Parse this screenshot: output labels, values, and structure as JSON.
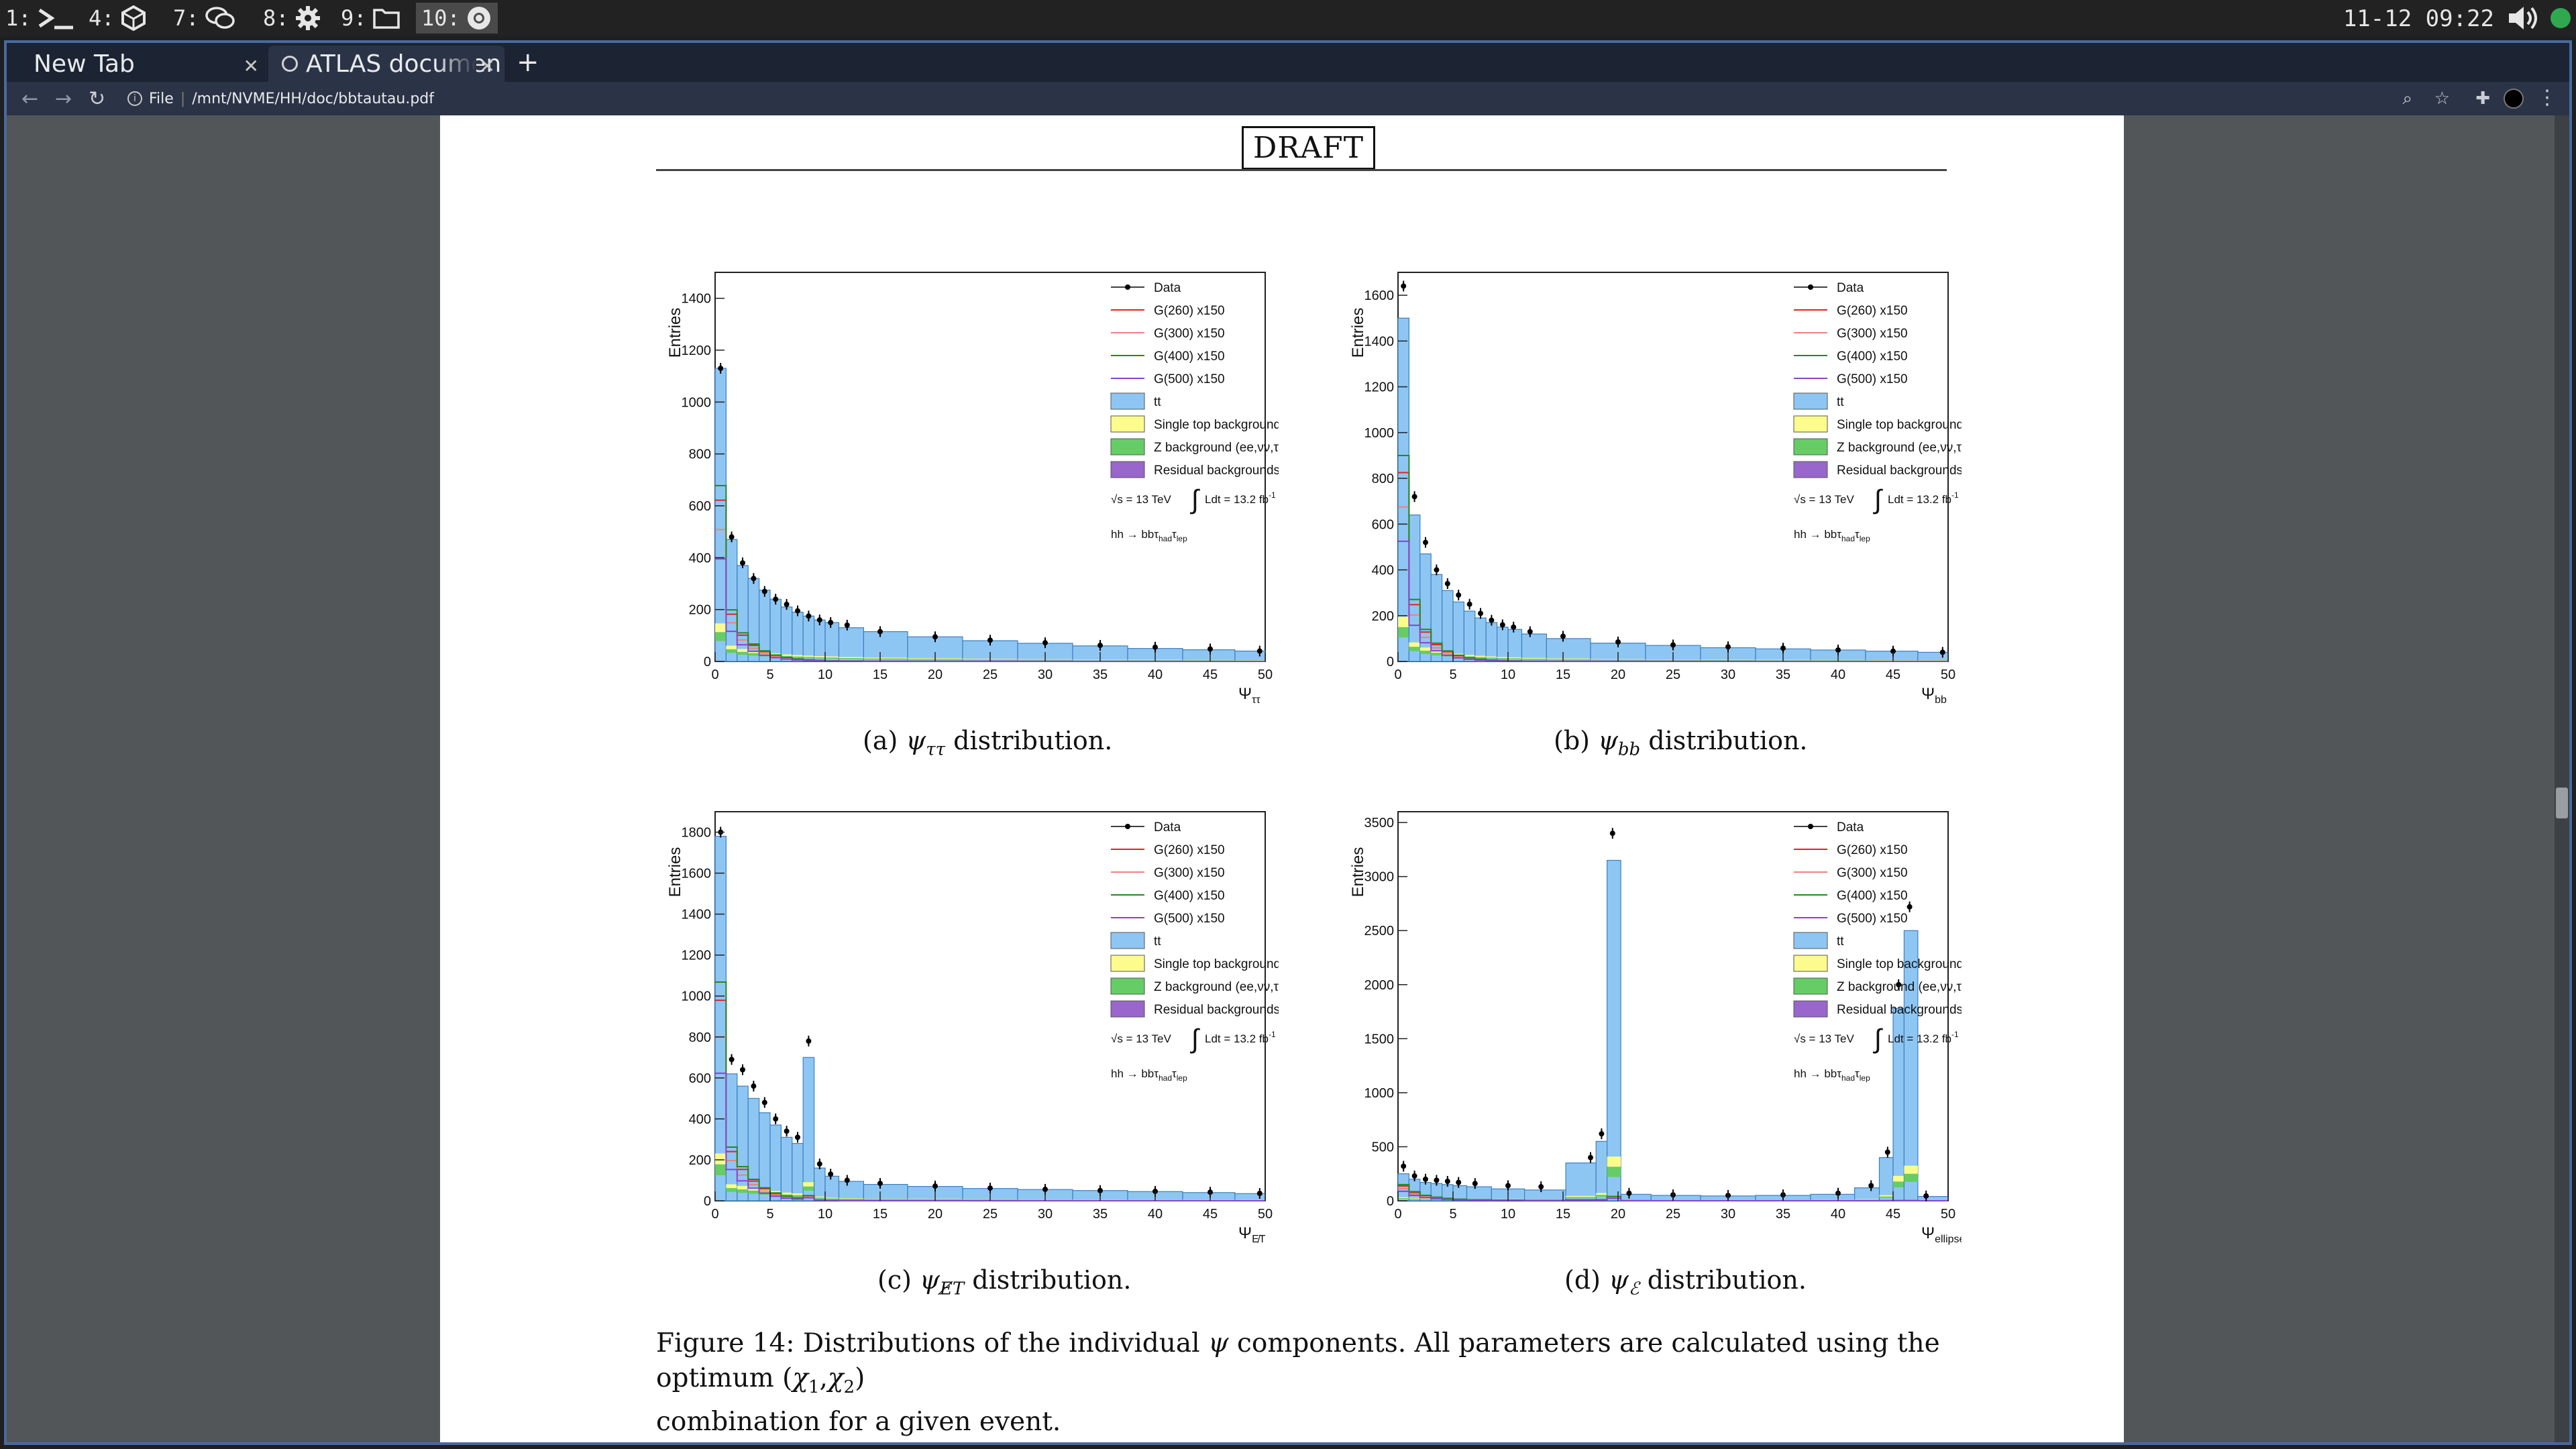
{
  "topbar": {
    "workspaces": [
      {
        "label": "1:",
        "icon": "terminal-icon"
      },
      {
        "label": "4:",
        "icon": "cube-icon"
      },
      {
        "label": "7:",
        "icon": "chat-icon"
      },
      {
        "label": "8:",
        "icon": "gear-icon"
      },
      {
        "label": "9:",
        "icon": "folder-icon"
      },
      {
        "label": "10:",
        "icon": "chrome-icon"
      }
    ],
    "clock": "11-12 09:22"
  },
  "browser": {
    "tabs": [
      {
        "label": "New Tab"
      },
      {
        "label": "ATLAS documen"
      }
    ],
    "omnibox": {
      "scheme": "File",
      "url": "/mnt/NVME/HH/doc/bbtautau.pdf"
    }
  },
  "document": {
    "draft_label": "DRAFT",
    "figure_caption": {
      "prefix": "Figure 14: Distributions of the individual",
      "psi": "ψ",
      "middle": "components. All parameters are calculated using the optimum (",
      "chi": "χ",
      "s1": "1",
      "comma": ",",
      "s2": "2",
      "close": ")",
      "line2": "combination for a given event."
    },
    "panels": [
      {
        "caption_letter": "(a)",
        "sym": "ψ",
        "sub": "ττ",
        "suffix": "distribution."
      },
      {
        "caption_letter": "(b)",
        "sym": "ψ",
        "sub": "bb",
        "suffix": "distribution."
      },
      {
        "caption_letter": "(c)",
        "sym": "ψ",
        "sub": "E̸T",
        "suffix": "distribution."
      },
      {
        "caption_letter": "(d)",
        "sym": "ψ",
        "sub": "ℰ",
        "suffix": "distribution."
      }
    ]
  },
  "colors": {
    "ttbar": "#8ec6f3",
    "single_top": "#fcfc8c",
    "z_bkg": "#66cc66",
    "residual": "#9966cc",
    "g260": "#e62222",
    "g300": "#f08080",
    "g400": "#228822",
    "g500": "#8844cc"
  },
  "chart_data": [
    {
      "type": "bar",
      "ylabel": "Entries",
      "xlabel_main": "Ψ",
      "xlabel_sub": "ττ",
      "xlim": [
        0,
        50
      ],
      "ylim": [
        0,
        1500
      ],
      "yticks": [
        0,
        200,
        400,
        600,
        800,
        1000,
        1200,
        1400
      ],
      "xticks": [
        0,
        5,
        10,
        15,
        20,
        25,
        30,
        35,
        40,
        45,
        50
      ],
      "legend": [
        "Data",
        "G(260) x150",
        "G(300) x150",
        "G(400) x150",
        "G(500) x150",
        "tt",
        "Single top background",
        "Z background (ee,νν,ττ)",
        "Residual backgrounds"
      ],
      "lumi": {
        "sqrt": "√s = 13 TeV",
        "integral": "∫",
        "ldt": "Ldt = 13.2 fb",
        "exp": "-1"
      },
      "channel": {
        "main": "hh → bbτ",
        "sub1": "had",
        "mid": "τ",
        "sub2": "lep"
      },
      "x": [
        0.5,
        1.5,
        2.5,
        3.5,
        4.5,
        5.5,
        6.5,
        7.5,
        8.5,
        9.5,
        10.5,
        12,
        15,
        20,
        25,
        30,
        35,
        40,
        45,
        49.5
      ],
      "ttbar": [
        1130,
        470,
        370,
        320,
        275,
        240,
        210,
        190,
        175,
        160,
        150,
        130,
        115,
        95,
        80,
        70,
        60,
        50,
        45,
        40
      ],
      "data": [
        1130,
        480,
        380,
        320,
        270,
        240,
        220,
        195,
        175,
        160,
        150,
        140,
        115,
        95,
        82,
        72,
        62,
        55,
        48,
        40
      ]
    },
    {
      "type": "bar",
      "ylabel": "Entries",
      "xlabel_main": "Ψ",
      "xlabel_sub": "bb",
      "xlim": [
        0,
        50
      ],
      "ylim": [
        0,
        1700
      ],
      "yticks": [
        0,
        200,
        400,
        600,
        800,
        1000,
        1200,
        1400,
        1600
      ],
      "xticks": [
        0,
        5,
        10,
        15,
        20,
        25,
        30,
        35,
        40,
        45,
        50
      ],
      "legend": [
        "Data",
        "G(260) x150",
        "G(300) x150",
        "G(400) x150",
        "G(500) x150",
        "tt",
        "Single top background",
        "Z background (ee,νν,ττ)",
        "Residual backgrounds"
      ],
      "lumi": {
        "sqrt": "√s = 13 TeV",
        "integral": "∫",
        "ldt": "Ldt = 13.2 fb",
        "exp": "-1"
      },
      "channel": {
        "main": "hh → bbτ",
        "sub1": "had",
        "mid": "τ",
        "sub2": "lep"
      },
      "x": [
        0.5,
        1.5,
        2.5,
        3.5,
        4.5,
        5.5,
        6.5,
        7.5,
        8.5,
        9.5,
        10.5,
        12,
        15,
        20,
        25,
        30,
        35,
        40,
        45,
        49.5
      ],
      "ttbar": [
        1500,
        640,
        470,
        380,
        310,
        260,
        220,
        190,
        170,
        150,
        140,
        120,
        100,
        80,
        70,
        60,
        55,
        50,
        45,
        40
      ],
      "data": [
        1640,
        720,
        520,
        400,
        340,
        290,
        250,
        210,
        180,
        160,
        150,
        130,
        110,
        85,
        72,
        64,
        58,
        50,
        45,
        40
      ]
    },
    {
      "type": "bar",
      "ylabel": "Entries",
      "xlabel_main": "Ψ",
      "xlabel_sub": "E̸T",
      "xlim": [
        0,
        50
      ],
      "ylim": [
        0,
        1900
      ],
      "yticks": [
        0,
        200,
        400,
        600,
        800,
        1000,
        1200,
        1400,
        1600,
        1800
      ],
      "xticks": [
        0,
        5,
        10,
        15,
        20,
        25,
        30,
        35,
        40,
        45,
        50
      ],
      "legend": [
        "Data",
        "G(260) x150",
        "G(300) x150",
        "G(400) x150",
        "G(500) x150",
        "tt",
        "Single top background",
        "Z background (ee,νν,ττ)",
        "Residual backgrounds"
      ],
      "lumi": {
        "sqrt": "√s = 13 TeV",
        "integral": "∫",
        "ldt": "Ldt = 13.2 fb",
        "exp": "-1"
      },
      "channel": {
        "main": "hh → bbτ",
        "sub1": "had",
        "mid": "τ",
        "sub2": "lep"
      },
      "x": [
        0.5,
        1.5,
        2.5,
        3.5,
        4.5,
        5.5,
        6.5,
        7.5,
        8.5,
        9.5,
        10.5,
        12,
        15,
        20,
        25,
        30,
        35,
        40,
        45,
        49.5
      ],
      "ttbar": [
        1780,
        620,
        560,
        500,
        430,
        370,
        310,
        280,
        700,
        160,
        120,
        95,
        80,
        70,
        60,
        55,
        50,
        45,
        40,
        35
      ],
      "data": [
        1800,
        690,
        640,
        560,
        480,
        400,
        340,
        310,
        780,
        180,
        130,
        100,
        85,
        72,
        62,
        56,
        50,
        46,
        42,
        36
      ]
    },
    {
      "type": "bar",
      "ylabel": "Entries",
      "xlabel_main": "Ψ",
      "xlabel_sub": "ellipse",
      "xlim": [
        0,
        50
      ],
      "ylim": [
        0,
        3600
      ],
      "yticks": [
        0,
        500,
        1000,
        1500,
        2000,
        2500,
        3000,
        3500
      ],
      "xticks": [
        0,
        5,
        10,
        15,
        20,
        25,
        30,
        35,
        40,
        45,
        50
      ],
      "legend": [
        "Data",
        "G(260) x150",
        "G(300) x150",
        "G(400) x150",
        "G(500) x150",
        "tt",
        "Single top background",
        "Z background (ee,νν,ττ)",
        "Residual backgrounds"
      ],
      "lumi": {
        "sqrt": "√s = 13 TeV",
        "integral": "∫",
        "ldt": "Ldt = 13.2 fb",
        "exp": "-1"
      },
      "channel": {
        "main": "hh → bbτ",
        "sub1": "had",
        "mid": "τ",
        "sub2": "lep"
      },
      "x": [
        0.5,
        1.5,
        2.5,
        3.5,
        4.5,
        5.5,
        7,
        10,
        13,
        17.5,
        18.5,
        19.5,
        21,
        25,
        30,
        35,
        40,
        43,
        44.5,
        45.5,
        46.5,
        48
      ],
      "ttbar": [
        250,
        200,
        170,
        160,
        150,
        140,
        130,
        110,
        100,
        350,
        550,
        3150,
        60,
        50,
        45,
        50,
        60,
        120,
        400,
        1780,
        2500,
        40
      ],
      "data": [
        320,
        230,
        200,
        190,
        180,
        170,
        160,
        140,
        130,
        400,
        620,
        3400,
        70,
        55,
        50,
        55,
        70,
        140,
        450,
        2000,
        2720,
        45
      ]
    }
  ]
}
